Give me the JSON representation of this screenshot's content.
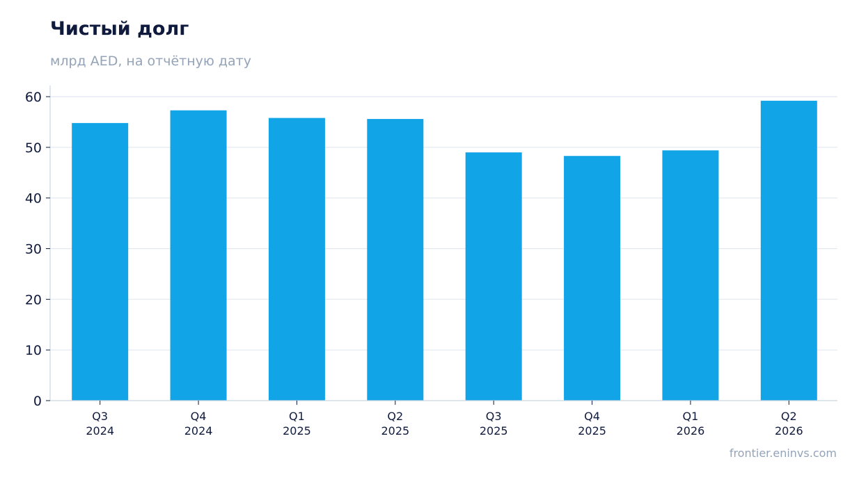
{
  "colors": {
    "bar": "#11a5e8",
    "grid": "#e2e8f0",
    "axis": "#cbd5e1",
    "title": "#0f1a3d",
    "muted": "#94a3b8"
  },
  "footer": {
    "source": "frontier.eninvs.com"
  },
  "chart_data": {
    "type": "bar",
    "title": "Чистый долг",
    "subtitle": "млрд AED, на отчётную дату",
    "xlabel": "",
    "ylabel": "",
    "categories": [
      [
        "Q3",
        "2024"
      ],
      [
        "Q4",
        "2024"
      ],
      [
        "Q1",
        "2025"
      ],
      [
        "Q2",
        "2025"
      ],
      [
        "Q3",
        "2025"
      ],
      [
        "Q4",
        "2025"
      ],
      [
        "Q1",
        "2026"
      ],
      [
        "Q2",
        "2026"
      ]
    ],
    "values": [
      54.8,
      57.3,
      55.8,
      55.6,
      49.0,
      48.3,
      49.4,
      59.2
    ],
    "ylim": [
      0,
      62
    ],
    "yticks": [
      0,
      10,
      20,
      30,
      40,
      50,
      60
    ],
    "grid": true,
    "legend": "none"
  }
}
